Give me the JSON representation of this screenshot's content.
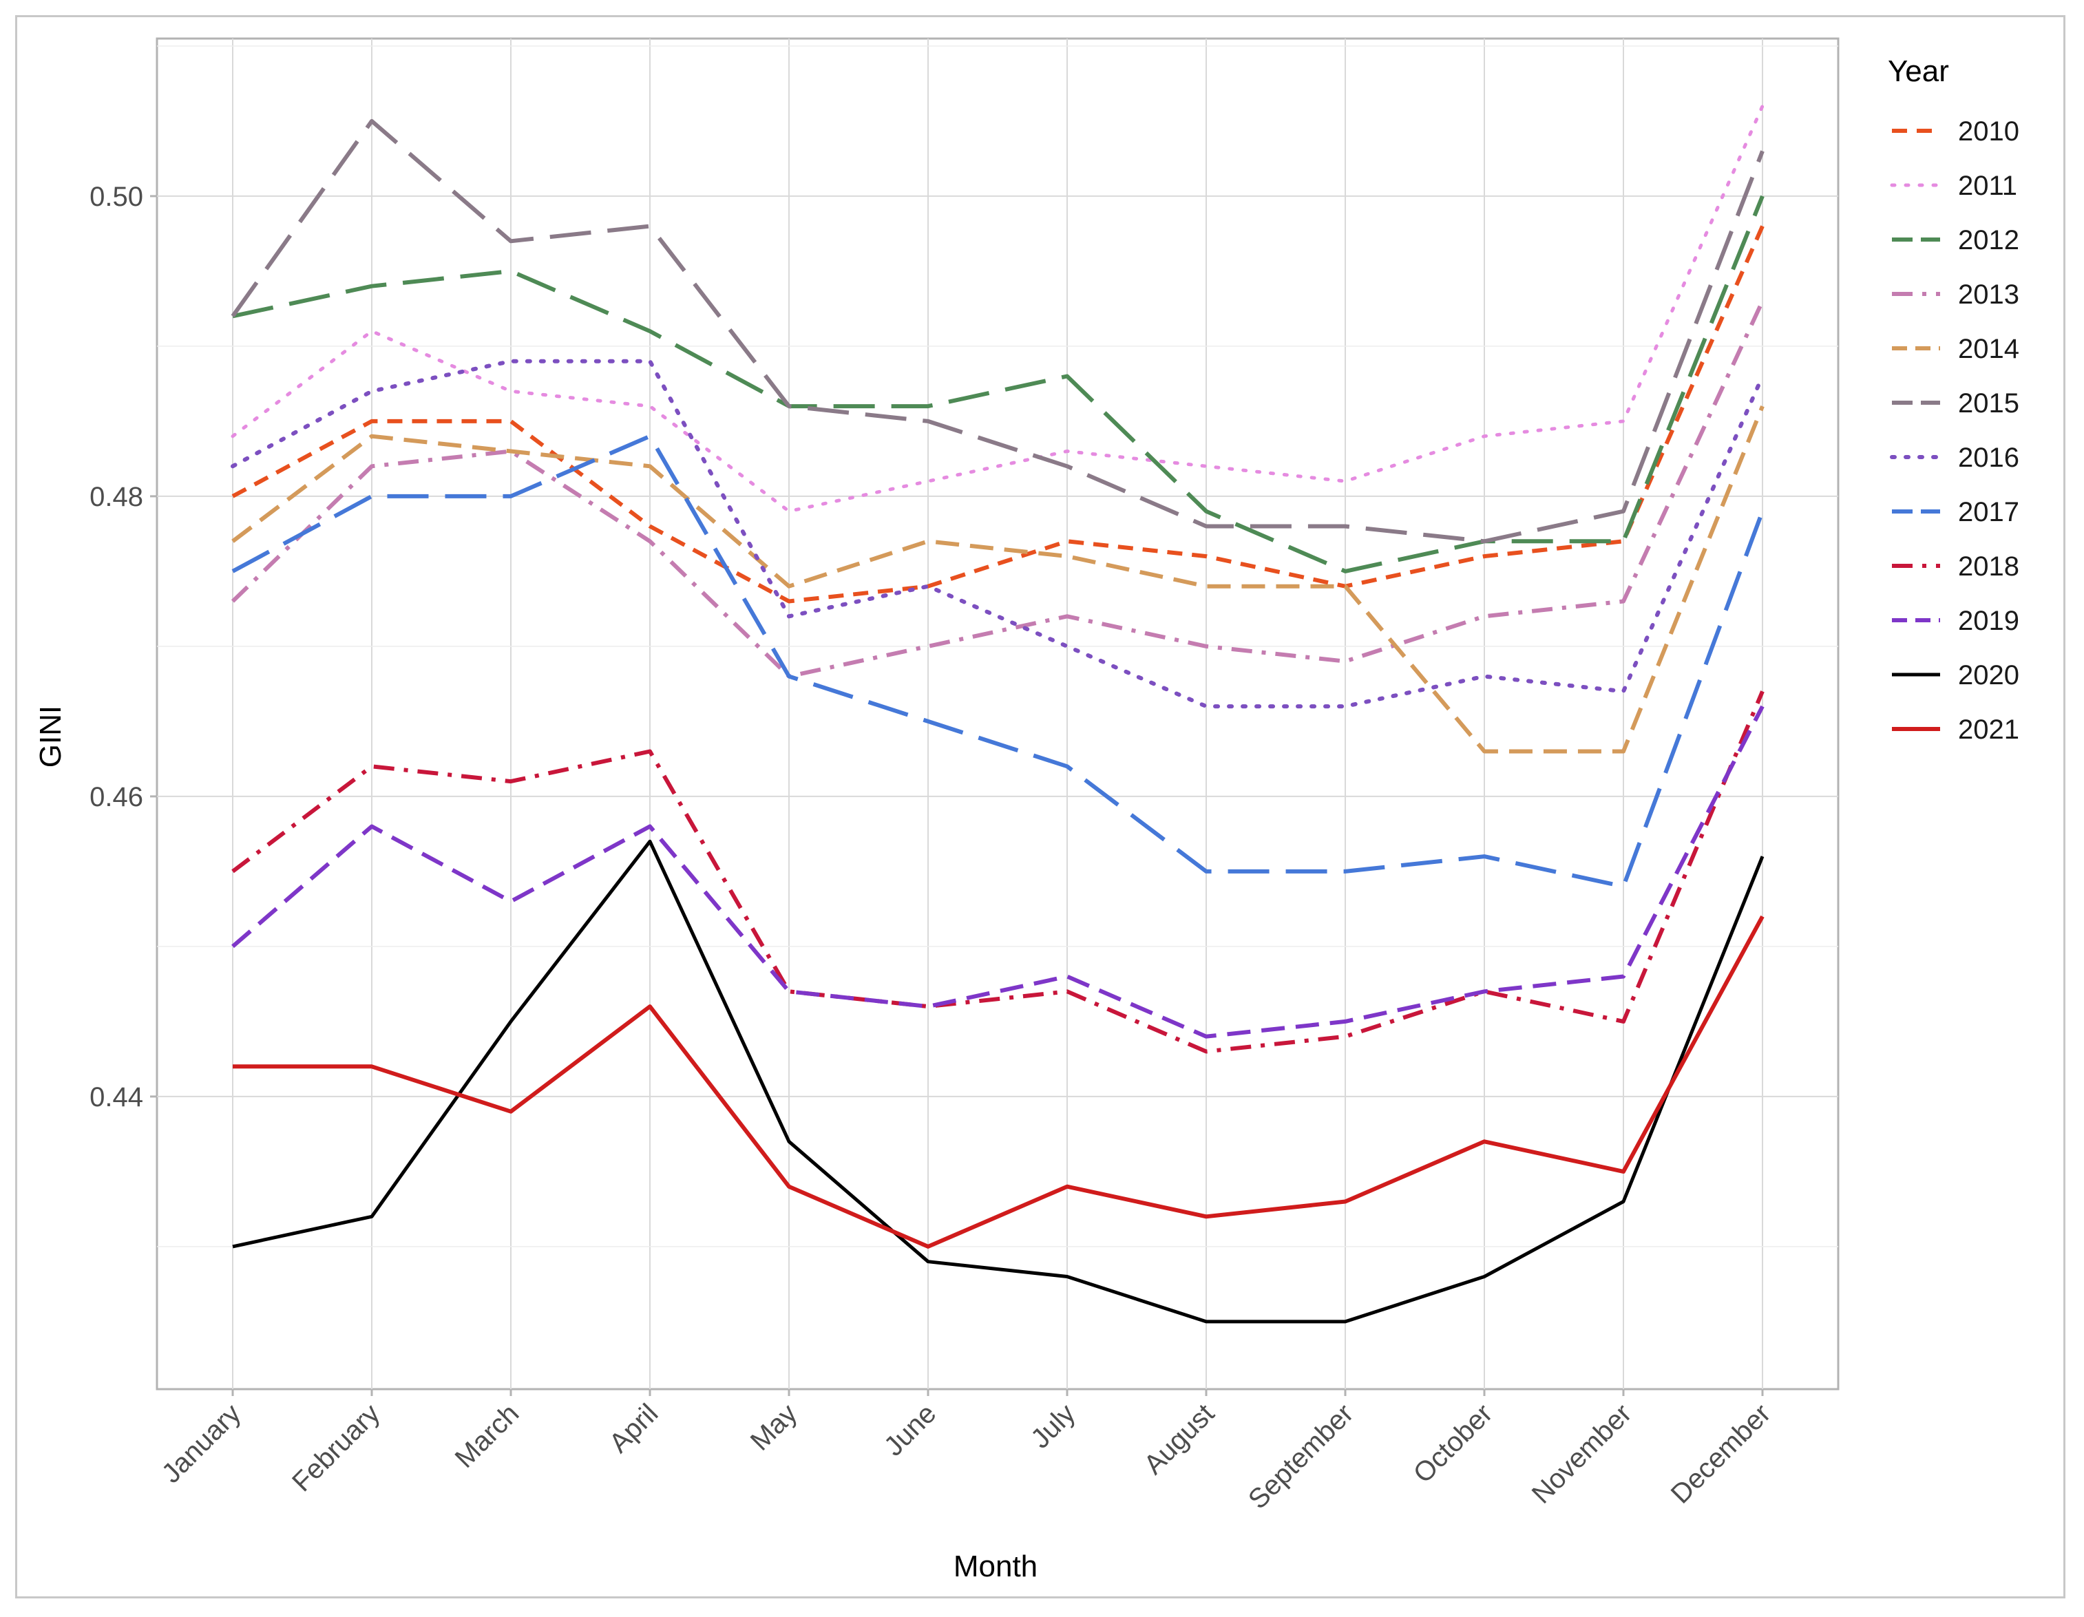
{
  "chart_data": {
    "type": "line",
    "title": "",
    "xlabel": "Month",
    "ylabel": "GINI",
    "ylim": [
      0.4205,
      0.5105
    ],
    "yticks": [
      0.44,
      0.46,
      0.48,
      0.5
    ],
    "ytick_labels": [
      "0.44",
      "0.46",
      "0.48",
      "0.50"
    ],
    "categories": [
      "January",
      "February",
      "March",
      "April",
      "May",
      "June",
      "July",
      "August",
      "September",
      "October",
      "November",
      "December"
    ],
    "grid": true,
    "legend": {
      "title": "Year",
      "position": "right"
    },
    "series": [
      {
        "name": "2010",
        "color": "#e8501e",
        "dash": "short",
        "width": 6,
        "values": [
          0.48,
          0.485,
          0.485,
          0.478,
          0.473,
          0.474,
          0.477,
          0.476,
          0.474,
          0.476,
          0.477,
          0.498
        ]
      },
      {
        "name": "2011",
        "color": "#e58be0",
        "dash": "dot",
        "width": 5,
        "values": [
          0.484,
          0.491,
          0.487,
          0.486,
          0.479,
          0.481,
          0.483,
          0.482,
          0.481,
          0.484,
          0.485,
          0.506
        ]
      },
      {
        "name": "2012",
        "color": "#4e8a55",
        "dash": "long",
        "width": 6,
        "values": [
          0.492,
          0.494,
          0.495,
          0.491,
          0.486,
          0.486,
          0.488,
          0.479,
          0.475,
          0.477,
          0.477,
          0.5
        ]
      },
      {
        "name": "2013",
        "color": "#c47cb0",
        "dash": "dashdot",
        "width": 6,
        "values": [
          0.473,
          0.482,
          0.483,
          0.477,
          0.468,
          0.47,
          0.472,
          0.47,
          0.469,
          0.472,
          0.473,
          0.493
        ]
      },
      {
        "name": "2014",
        "color": "#d49a5a",
        "dash": "medium",
        "width": 6,
        "values": [
          0.477,
          0.484,
          0.483,
          0.482,
          0.474,
          0.477,
          0.476,
          0.474,
          0.474,
          0.463,
          0.463,
          0.486
        ]
      },
      {
        "name": "2015",
        "color": "#8a7a88",
        "dash": "long",
        "width": 6,
        "values": [
          0.492,
          0.505,
          0.497,
          0.498,
          0.486,
          0.485,
          0.482,
          0.478,
          0.478,
          0.477,
          0.479,
          0.503
        ]
      },
      {
        "name": "2016",
        "color": "#7c4fc0",
        "dash": "dot",
        "width": 6,
        "values": [
          0.482,
          0.487,
          0.489,
          0.489,
          0.472,
          0.474,
          0.47,
          0.466,
          0.466,
          0.468,
          0.467,
          0.488
        ]
      },
      {
        "name": "2017",
        "color": "#4578d8",
        "dash": "long",
        "width": 6,
        "values": [
          0.475,
          0.48,
          0.48,
          0.484,
          0.468,
          0.465,
          0.462,
          0.455,
          0.455,
          0.456,
          0.454,
          0.479
        ]
      },
      {
        "name": "2018",
        "color": "#c8163a",
        "dash": "dashdot",
        "width": 6,
        "values": [
          0.455,
          0.462,
          0.461,
          0.463,
          0.447,
          0.446,
          0.447,
          0.443,
          0.444,
          0.447,
          0.445,
          0.467
        ]
      },
      {
        "name": "2019",
        "color": "#7e36c8",
        "dash": "medium",
        "width": 6,
        "values": [
          0.45,
          0.458,
          0.453,
          0.458,
          0.447,
          0.446,
          0.448,
          0.444,
          0.445,
          0.447,
          0.448,
          0.466
        ]
      },
      {
        "name": "2020",
        "color": "#000000",
        "dash": "solid",
        "width": 5,
        "values": [
          0.43,
          0.432,
          0.445,
          0.457,
          0.437,
          0.429,
          0.428,
          0.425,
          0.425,
          0.428,
          0.433,
          0.456
        ]
      },
      {
        "name": "2021",
        "color": "#d01c1c",
        "dash": "solid",
        "width": 6,
        "values": [
          0.442,
          0.442,
          0.439,
          0.446,
          0.434,
          0.43,
          0.434,
          0.432,
          0.433,
          0.437,
          0.435,
          0.452
        ]
      }
    ]
  }
}
